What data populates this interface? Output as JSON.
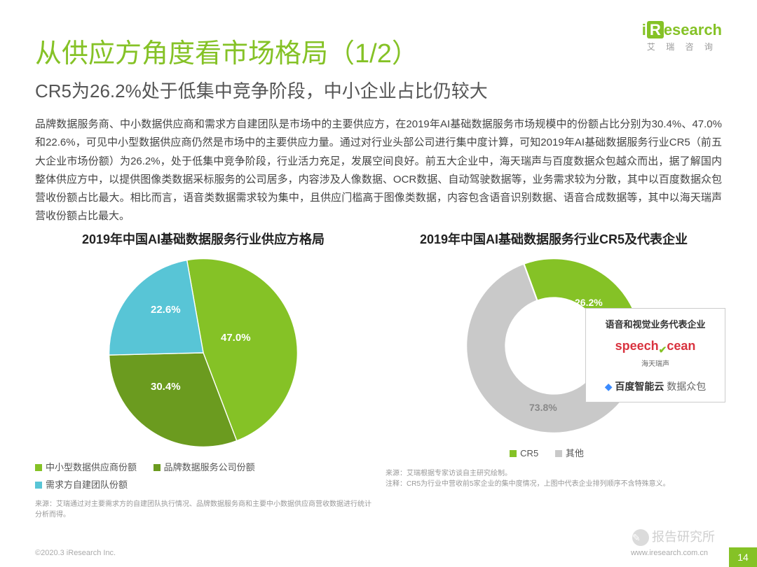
{
  "logo": {
    "text": "iResearch",
    "sub": "艾 瑞 咨 询"
  },
  "title": "从供应方角度看市场格局（1/2）",
  "subtitle": "CR5为26.2%处于低集中竞争阶段，中小企业占比仍较大",
  "body": "品牌数据服务商、中小数据供应商和需求方自建团队是市场中的主要供应方，在2019年AI基础数据服务市场规模中的份额占比分别为30.4%、47.0%和22.6%，可见中小型数据供应商仍然是市场中的主要供应力量。通过对行业头部公司进行集中度计算，可知2019年AI基础数据服务行业CR5（前五大企业市场份额）为26.2%，处于低集中竞争阶段，行业活力充足，发展空间良好。前五大企业中，海天瑞声与百度数据众包越众而出，据了解国内整体供应方中，以提供图像类数据采标服务的公司居多，内容涉及人像数据、OCR数据、自动驾驶数据等，业务需求较为分散，其中以百度数据众包营收份额占比最大。相比而言，语音类数据需求较为集中，且供应门槛高于图像类数据，内容包含语音识别数据、语音合成数据等，其中以海天瑞声营收份额占比最大。",
  "pie": {
    "title": "2019年中国AI基础数据服务行业供应方格局",
    "type": "pie",
    "slices": [
      {
        "label": "中小型数据供应商份额",
        "value": 47.0,
        "color": "#85c226",
        "text": "47.0%"
      },
      {
        "label": "品牌数据服务公司份额",
        "value": 30.4,
        "color": "#6b9b1f",
        "text": "30.4%"
      },
      {
        "label": "需求方自建团队份额",
        "value": 22.6,
        "color": "#58c5d6",
        "text": "22.6%"
      }
    ],
    "label_colors": {
      "47.0%": "#ffffff",
      "30.4%": "#ffffff",
      "22.6%": "#ffffff"
    },
    "legend_colors": {
      "a": "#85c226",
      "b": "#6b9b1f",
      "c": "#58c5d6"
    },
    "footnote": "来源：艾瑞通过对主要需求方的自建团队执行情况、品牌数据服务商和主要中小数据供应商营收数据进行统计分析而得。"
  },
  "donut": {
    "title": "2019年中国AI基础数据服务行业CR5及代表企业",
    "type": "donut",
    "slices": [
      {
        "label": "CR5",
        "value": 26.2,
        "color": "#85c226",
        "text": "26.2%"
      },
      {
        "label": "其他",
        "value": 73.8,
        "color": "#c9c9c9",
        "text": "73.8%"
      }
    ],
    "inner_radius_pct": 55,
    "legend_colors": {
      "a": "#85c226",
      "b": "#c9c9c9"
    },
    "footnote": "来源：艾瑞根据专家访谈自主研究绘制。\n注释：CR5为行业中营收前5家企业的集中度情况，上图中代表企业排列顺序不含特殊意义。"
  },
  "sidebox": {
    "title": "语音和视觉业务代表企业",
    "brand1": "speechocean",
    "brand1_sub": "海天瑞声",
    "brand2a": "百度智能云",
    "brand2b": "数据众包"
  },
  "footer": {
    "left": "©2020.3 iResearch Inc.",
    "right": "www.iresearch.com.cn",
    "page": "14"
  },
  "watermark": "报告研究所"
}
